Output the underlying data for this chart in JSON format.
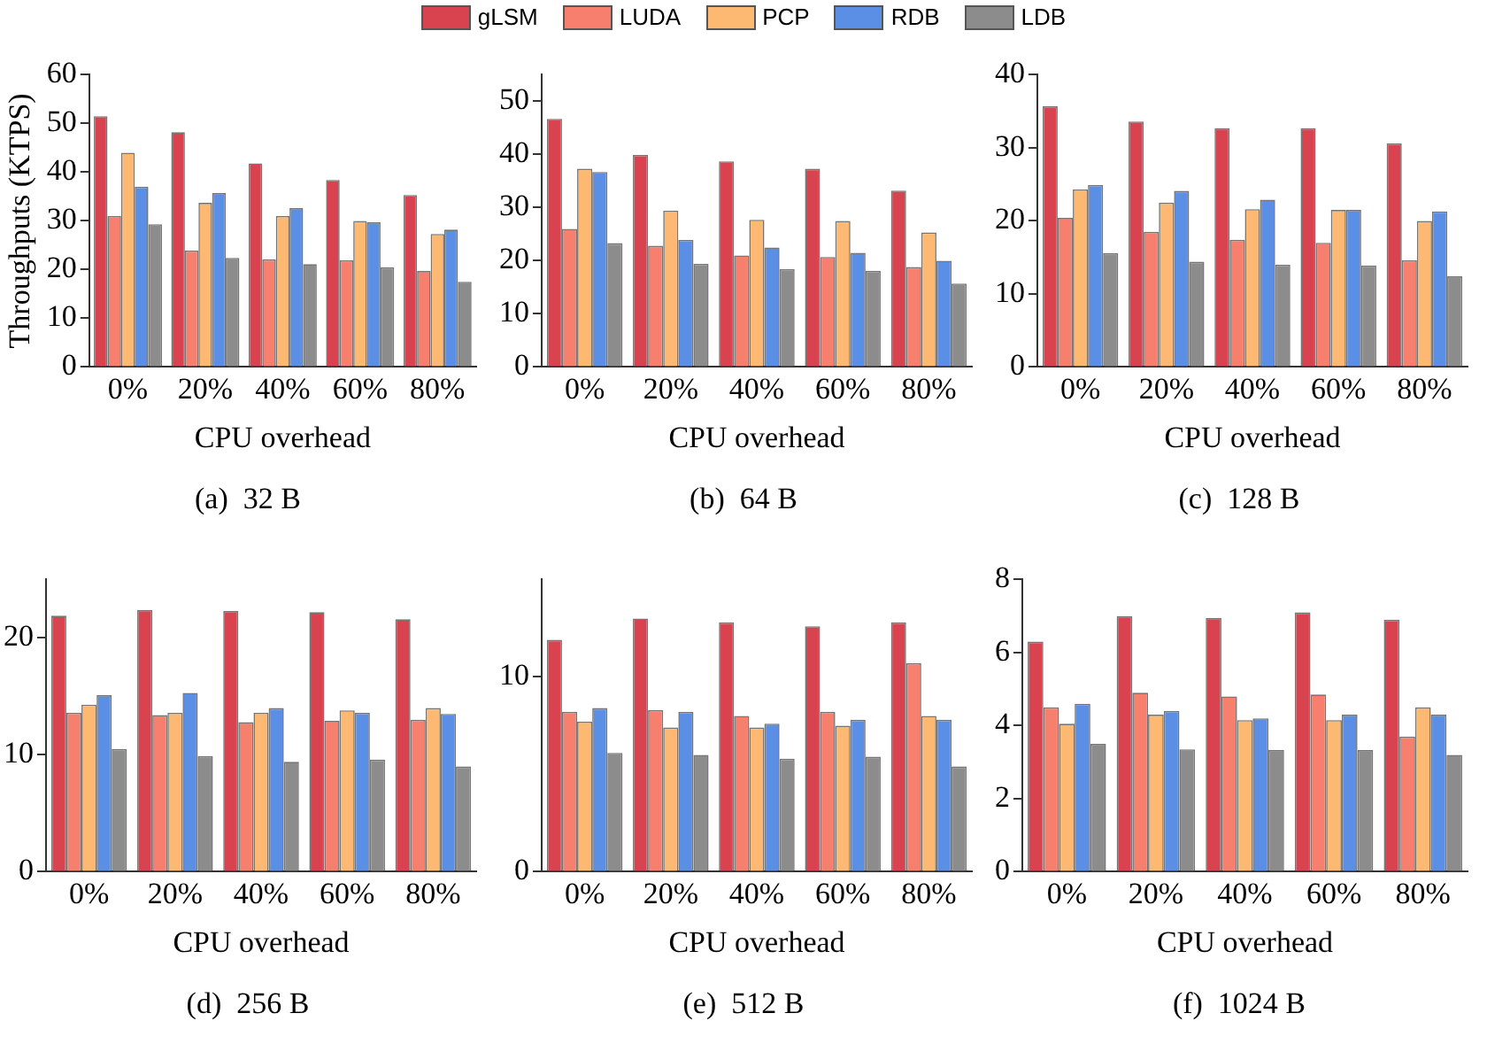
{
  "chart_data": [
    {
      "type": "bar",
      "ylabel": "Throughputs (KTPS)",
      "xlabel": "CPU overhead",
      "annotations": [
        "(a)  32 B"
      ],
      "categories": [
        "0%",
        "20%",
        "40%",
        "60%",
        "80%"
      ],
      "ylim": [
        0,
        60
      ],
      "yticks": [
        0,
        10,
        20,
        30,
        40,
        50,
        60
      ],
      "grid": false,
      "legend": "top",
      "series": [
        {
          "name": "gLSM",
          "color": "#d9434f",
          "values": [
            51.5,
            48.2,
            41.8,
            38.4,
            35.3
          ]
        },
        {
          "name": "LUDA",
          "color": "#f77f6e",
          "values": [
            31.0,
            23.9,
            22.1,
            21.9,
            19.7
          ]
        },
        {
          "name": "PCP",
          "color": "#fdb872",
          "values": [
            44.0,
            33.7,
            31.0,
            30.0,
            27.3
          ]
        },
        {
          "name": "RDB",
          "color": "#5b8fe6",
          "values": [
            37.0,
            35.7,
            32.6,
            29.7,
            28.2
          ]
        },
        {
          "name": "LDB",
          "color": "#8c8c8c",
          "values": [
            29.3,
            22.4,
            21.1,
            20.5,
            17.5
          ]
        }
      ]
    },
    {
      "type": "bar",
      "xlabel": "CPU overhead",
      "annotations": [
        "(b)  64 B"
      ],
      "categories": [
        "0%",
        "20%",
        "40%",
        "60%",
        "80%"
      ],
      "ylim": [
        0,
        55
      ],
      "yticks": [
        0,
        10,
        20,
        30,
        40,
        50
      ],
      "grid": false,
      "series": [
        {
          "color": "#d9434f",
          "values": [
            46.7,
            39.9,
            38.7,
            37.3,
            33.2
          ]
        },
        {
          "color": "#f77f6e",
          "values": [
            26.0,
            22.8,
            21.0,
            20.7,
            18.8
          ]
        },
        {
          "color": "#fdb872",
          "values": [
            37.3,
            29.4,
            27.7,
            27.5,
            25.3
          ]
        },
        {
          "color": "#5b8fe6",
          "values": [
            36.7,
            23.9,
            22.5,
            21.5,
            20.0
          ]
        },
        {
          "color": "#8c8c8c",
          "values": [
            23.3,
            19.4,
            18.4,
            18.1,
            15.7
          ]
        }
      ]
    },
    {
      "type": "bar",
      "xlabel": "CPU overhead",
      "annotations": [
        "(c)  128 B"
      ],
      "categories": [
        "0%",
        "20%",
        "40%",
        "60%",
        "80%"
      ],
      "ylim": [
        0,
        40
      ],
      "yticks": [
        0,
        10,
        20,
        30,
        40
      ],
      "grid": false,
      "series": [
        {
          "color": "#d9434f",
          "values": [
            35.7,
            33.6,
            32.7,
            32.7,
            30.6
          ]
        },
        {
          "color": "#f77f6e",
          "values": [
            20.4,
            18.5,
            17.4,
            17.0,
            14.6
          ]
        },
        {
          "color": "#fdb872",
          "values": [
            24.3,
            22.5,
            21.6,
            21.5,
            20.0
          ]
        },
        {
          "color": "#5b8fe6",
          "values": [
            24.9,
            24.1,
            22.9,
            21.5,
            21.3
          ]
        },
        {
          "color": "#8c8c8c",
          "values": [
            15.6,
            14.4,
            14.0,
            13.9,
            12.4
          ]
        }
      ]
    },
    {
      "type": "bar",
      "xlabel": "CPU overhead",
      "annotations": [
        "(d)  256 B"
      ],
      "categories": [
        "0%",
        "20%",
        "40%",
        "60%",
        "80%"
      ],
      "ylim": [
        0,
        25
      ],
      "yticks": [
        0,
        10,
        20
      ],
      "grid": false,
      "series": [
        {
          "color": "#d9434f",
          "values": [
            21.9,
            22.4,
            22.3,
            22.2,
            21.6
          ]
        },
        {
          "color": "#f77f6e",
          "values": [
            13.6,
            13.4,
            12.8,
            12.9,
            13.0
          ]
        },
        {
          "color": "#fdb872",
          "values": [
            14.3,
            13.6,
            13.6,
            13.8,
            14.0
          ]
        },
        {
          "color": "#5b8fe6",
          "values": [
            15.1,
            15.3,
            14.0,
            13.6,
            13.5
          ]
        },
        {
          "color": "#8c8c8c",
          "values": [
            10.5,
            9.9,
            9.4,
            9.6,
            9.0
          ]
        }
      ]
    },
    {
      "type": "bar",
      "xlabel": "CPU overhead",
      "annotations": [
        "(e)  512 B"
      ],
      "categories": [
        "0%",
        "20%",
        "40%",
        "60%",
        "80%"
      ],
      "ylim": [
        0,
        15
      ],
      "yticks": [
        0,
        10
      ],
      "grid": false,
      "series": [
        {
          "color": "#d9434f",
          "values": [
            11.9,
            13.0,
            12.8,
            12.6,
            12.8
          ]
        },
        {
          "color": "#f77f6e",
          "values": [
            8.2,
            8.3,
            8.0,
            8.2,
            10.7
          ]
        },
        {
          "color": "#fdb872",
          "values": [
            7.7,
            7.4,
            7.4,
            7.5,
            8.0
          ]
        },
        {
          "color": "#5b8fe6",
          "values": [
            8.4,
            8.2,
            7.6,
            7.8,
            7.8
          ]
        },
        {
          "color": "#8c8c8c",
          "values": [
            6.1,
            6.0,
            5.8,
            5.9,
            5.4
          ]
        }
      ]
    },
    {
      "type": "bar",
      "xlabel": "CPU overhead",
      "annotations": [
        "(f)  1024 B"
      ],
      "categories": [
        "0%",
        "20%",
        "40%",
        "60%",
        "80%"
      ],
      "ylim": [
        0,
        8
      ],
      "yticks": [
        0,
        2,
        4,
        6,
        8
      ],
      "grid": false,
      "series": [
        {
          "color": "#d9434f",
          "values": [
            6.3,
            7.0,
            6.95,
            7.1,
            6.9
          ]
        },
        {
          "color": "#f77f6e",
          "values": [
            4.5,
            4.9,
            4.8,
            4.85,
            3.7
          ]
        },
        {
          "color": "#fdb872",
          "values": [
            4.05,
            4.3,
            4.15,
            4.15,
            4.5
          ]
        },
        {
          "color": "#5b8fe6",
          "values": [
            4.6,
            4.4,
            4.2,
            4.3,
            4.3
          ]
        },
        {
          "color": "#8c8c8c",
          "values": [
            3.5,
            3.35,
            3.33,
            3.33,
            3.2
          ]
        }
      ]
    }
  ]
}
